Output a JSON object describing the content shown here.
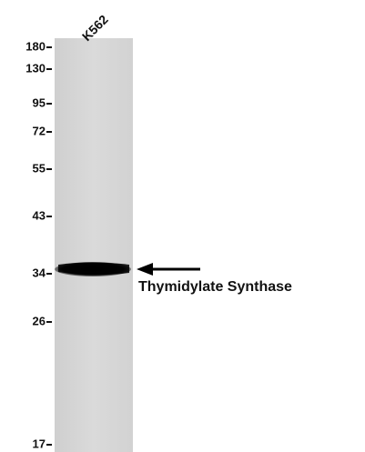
{
  "lane_label": "K562",
  "markers": [
    "180",
    "130",
    "95",
    "72",
    "55",
    "43",
    "34",
    "26",
    "17"
  ],
  "band_label": "Thymidylate Synthase"
}
